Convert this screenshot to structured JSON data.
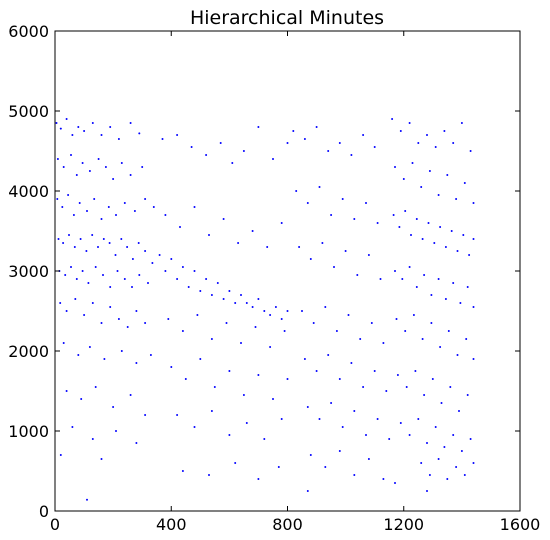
{
  "chart_data": {
    "type": "scatter",
    "title": "Hierarchical Minutes",
    "xlabel": "",
    "ylabel": "",
    "xlim": [
      0,
      1600
    ],
    "ylim": [
      0,
      6000
    ],
    "x_ticks": [
      "0",
      "400",
      "800",
      "1200",
      "1600"
    ],
    "y_ticks": [
      "0",
      "1000",
      "2000",
      "3000",
      "4000",
      "5000",
      "6000"
    ],
    "grid": false,
    "legend": "none",
    "marker_color": "#0000ff",
    "estimated_points": 3000,
    "x_extent": [
      0,
      1440
    ],
    "y_extent": [
      130,
      5000
    ],
    "clusters": [
      {
        "x_range": [
          0,
          350
        ],
        "y_center": 3300,
        "note": "dense band 2200-4900"
      },
      {
        "x_range": [
          350,
          800
        ],
        "y_center": 2900,
        "note": "descending band to ~2300"
      },
      {
        "x_range": [
          800,
          1150
        ],
        "y_center": 1700,
        "note": "lower band 700-2500"
      },
      {
        "x_range": [
          1150,
          1440
        ],
        "y_center": 3200,
        "note": "dense band 500-4900"
      }
    ],
    "series": [
      {
        "points": [
          [
            5,
            4850
          ],
          [
            20,
            4780
          ],
          [
            40,
            4900
          ],
          [
            60,
            4700
          ],
          [
            80,
            4800
          ],
          [
            100,
            4750
          ],
          [
            130,
            4850
          ],
          [
            160,
            4700
          ],
          [
            190,
            4800
          ],
          [
            220,
            4650
          ],
          [
            260,
            4850
          ],
          [
            290,
            4720
          ],
          [
            10,
            4400
          ],
          [
            30,
            4300
          ],
          [
            55,
            4450
          ],
          [
            75,
            4200
          ],
          [
            95,
            4350
          ],
          [
            120,
            4250
          ],
          [
            150,
            4400
          ],
          [
            175,
            4300
          ],
          [
            200,
            4150
          ],
          [
            230,
            4350
          ],
          [
            260,
            4200
          ],
          [
            300,
            4300
          ],
          [
            8,
            3900
          ],
          [
            25,
            3800
          ],
          [
            45,
            3950
          ],
          [
            65,
            3700
          ],
          [
            85,
            3850
          ],
          [
            110,
            3750
          ],
          [
            135,
            3900
          ],
          [
            160,
            3650
          ],
          [
            185,
            3800
          ],
          [
            210,
            3700
          ],
          [
            240,
            3850
          ],
          [
            275,
            3750
          ],
          [
            310,
            3900
          ],
          [
            340,
            3800
          ],
          [
            12,
            3400
          ],
          [
            28,
            3350
          ],
          [
            48,
            3450
          ],
          [
            68,
            3300
          ],
          [
            88,
            3400
          ],
          [
            108,
            3250
          ],
          [
            128,
            3450
          ],
          [
            148,
            3300
          ],
          [
            168,
            3400
          ],
          [
            188,
            3350
          ],
          [
            208,
            3200
          ],
          [
            228,
            3400
          ],
          [
            248,
            3300
          ],
          [
            268,
            3150
          ],
          [
            288,
            3350
          ],
          [
            310,
            3250
          ],
          [
            335,
            3100
          ],
          [
            15,
            3000
          ],
          [
            35,
            2950
          ],
          [
            55,
            3050
          ],
          [
            75,
            2900
          ],
          [
            95,
            3000
          ],
          [
            115,
            2850
          ],
          [
            140,
            3050
          ],
          [
            165,
            2950
          ],
          [
            190,
            2800
          ],
          [
            215,
            3000
          ],
          [
            240,
            2900
          ],
          [
            265,
            2800
          ],
          [
            290,
            2950
          ],
          [
            320,
            2850
          ],
          [
            18,
            2600
          ],
          [
            40,
            2500
          ],
          [
            70,
            2650
          ],
          [
            100,
            2450
          ],
          [
            130,
            2600
          ],
          [
            160,
            2350
          ],
          [
            190,
            2550
          ],
          [
            220,
            2400
          ],
          [
            250,
            2300
          ],
          [
            280,
            2500
          ],
          [
            310,
            2350
          ],
          [
            30,
            2100
          ],
          [
            80,
            1950
          ],
          [
            120,
            2050
          ],
          [
            170,
            1900
          ],
          [
            230,
            2000
          ],
          [
            280,
            1850
          ],
          [
            330,
            1950
          ],
          [
            40,
            1500
          ],
          [
            90,
            1400
          ],
          [
            140,
            1550
          ],
          [
            200,
            1300
          ],
          [
            260,
            1450
          ],
          [
            310,
            1200
          ],
          [
            60,
            1050
          ],
          [
            130,
            900
          ],
          [
            210,
            1000
          ],
          [
            280,
            850
          ],
          [
            110,
            140
          ],
          [
            20,
            700
          ],
          [
            160,
            650
          ],
          [
            360,
            3200
          ],
          [
            380,
            3000
          ],
          [
            400,
            3150
          ],
          [
            420,
            2900
          ],
          [
            440,
            3050
          ],
          [
            460,
            2800
          ],
          [
            480,
            3000
          ],
          [
            500,
            2750
          ],
          [
            520,
            2900
          ],
          [
            540,
            2700
          ],
          [
            560,
            2850
          ],
          [
            580,
            2650
          ],
          [
            600,
            2750
          ],
          [
            620,
            2600
          ],
          [
            370,
            4650
          ],
          [
            420,
            4700
          ],
          [
            470,
            4550
          ],
          [
            520,
            4450
          ],
          [
            570,
            4600
          ],
          [
            610,
            4350
          ],
          [
            650,
            4500
          ],
          [
            700,
            4800
          ],
          [
            750,
            4400
          ],
          [
            800,
            4600
          ],
          [
            380,
            3700
          ],
          [
            430,
            3550
          ],
          [
            480,
            3800
          ],
          [
            530,
            3450
          ],
          [
            580,
            3650
          ],
          [
            630,
            3350
          ],
          [
            680,
            3500
          ],
          [
            730,
            3300
          ],
          [
            780,
            3600
          ],
          [
            390,
            2400
          ],
          [
            440,
            2250
          ],
          [
            490,
            2450
          ],
          [
            540,
            2150
          ],
          [
            590,
            2350
          ],
          [
            640,
            2100
          ],
          [
            690,
            2300
          ],
          [
            740,
            2050
          ],
          [
            790,
            2250
          ],
          [
            400,
            1800
          ],
          [
            450,
            1650
          ],
          [
            500,
            1900
          ],
          [
            550,
            1550
          ],
          [
            600,
            1750
          ],
          [
            650,
            1450
          ],
          [
            700,
            1700
          ],
          [
            750,
            1400
          ],
          [
            800,
            1650
          ],
          [
            420,
            1200
          ],
          [
            480,
            1050
          ],
          [
            540,
            1250
          ],
          [
            600,
            950
          ],
          [
            660,
            1100
          ],
          [
            720,
            900
          ],
          [
            780,
            1150
          ],
          [
            440,
            500
          ],
          [
            530,
            450
          ],
          [
            620,
            600
          ],
          [
            700,
            400
          ],
          [
            770,
            550
          ],
          [
            640,
            2700
          ],
          [
            660,
            2600
          ],
          [
            680,
            2550
          ],
          [
            700,
            2650
          ],
          [
            720,
            2500
          ],
          [
            740,
            2450
          ],
          [
            760,
            2550
          ],
          [
            780,
            2400
          ],
          [
            800,
            2500
          ],
          [
            820,
            4750
          ],
          [
            860,
            4650
          ],
          [
            900,
            4800
          ],
          [
            940,
            4500
          ],
          [
            980,
            4600
          ],
          [
            1020,
            4450
          ],
          [
            1060,
            4700
          ],
          [
            1100,
            4550
          ],
          [
            830,
            4000
          ],
          [
            870,
            3850
          ],
          [
            910,
            4050
          ],
          [
            950,
            3700
          ],
          [
            990,
            3900
          ],
          [
            1030,
            3650
          ],
          [
            1070,
            3850
          ],
          [
            1110,
            3600
          ],
          [
            840,
            3300
          ],
          [
            880,
            3150
          ],
          [
            920,
            3350
          ],
          [
            960,
            3050
          ],
          [
            1000,
            3250
          ],
          [
            1040,
            2950
          ],
          [
            1080,
            3200
          ],
          [
            1120,
            2900
          ],
          [
            850,
            2500
          ],
          [
            890,
            2350
          ],
          [
            930,
            2550
          ],
          [
            970,
            2250
          ],
          [
            1010,
            2450
          ],
          [
            1050,
            2150
          ],
          [
            1090,
            2350
          ],
          [
            1130,
            2100
          ],
          [
            860,
            1900
          ],
          [
            900,
            1750
          ],
          [
            940,
            1950
          ],
          [
            980,
            1650
          ],
          [
            1020,
            1850
          ],
          [
            1060,
            1550
          ],
          [
            1100,
            1750
          ],
          [
            1140,
            1500
          ],
          [
            870,
            1300
          ],
          [
            910,
            1150
          ],
          [
            950,
            1350
          ],
          [
            990,
            1050
          ],
          [
            1030,
            1250
          ],
          [
            1070,
            950
          ],
          [
            1110,
            1150
          ],
          [
            1150,
            900
          ],
          [
            880,
            700
          ],
          [
            930,
            550
          ],
          [
            980,
            750
          ],
          [
            1030,
            450
          ],
          [
            1080,
            650
          ],
          [
            1130,
            400
          ],
          [
            870,
            250
          ],
          [
            1160,
            4900
          ],
          [
            1190,
            4750
          ],
          [
            1220,
            4850
          ],
          [
            1250,
            4600
          ],
          [
            1280,
            4700
          ],
          [
            1310,
            4550
          ],
          [
            1340,
            4750
          ],
          [
            1370,
            4600
          ],
          [
            1400,
            4850
          ],
          [
            1430,
            4500
          ],
          [
            1170,
            4300
          ],
          [
            1200,
            4150
          ],
          [
            1230,
            4350
          ],
          [
            1260,
            4050
          ],
          [
            1290,
            4250
          ],
          [
            1320,
            3950
          ],
          [
            1350,
            4200
          ],
          [
            1380,
            3900
          ],
          [
            1410,
            4100
          ],
          [
            1440,
            3850
          ],
          [
            1165,
            3700
          ],
          [
            1185,
            3550
          ],
          [
            1205,
            3750
          ],
          [
            1225,
            3450
          ],
          [
            1245,
            3650
          ],
          [
            1265,
            3400
          ],
          [
            1285,
            3600
          ],
          [
            1305,
            3350
          ],
          [
            1325,
            3550
          ],
          [
            1345,
            3300
          ],
          [
            1365,
            3500
          ],
          [
            1385,
            3250
          ],
          [
            1405,
            3450
          ],
          [
            1425,
            3200
          ],
          [
            1440,
            3400
          ],
          [
            1170,
            3000
          ],
          [
            1195,
            2900
          ],
          [
            1220,
            3050
          ],
          [
            1245,
            2800
          ],
          [
            1270,
            2950
          ],
          [
            1295,
            2700
          ],
          [
            1320,
            2900
          ],
          [
            1345,
            2650
          ],
          [
            1370,
            2850
          ],
          [
            1395,
            2600
          ],
          [
            1420,
            2800
          ],
          [
            1440,
            2550
          ],
          [
            1175,
            2400
          ],
          [
            1205,
            2250
          ],
          [
            1235,
            2450
          ],
          [
            1265,
            2150
          ],
          [
            1295,
            2350
          ],
          [
            1325,
            2050
          ],
          [
            1355,
            2250
          ],
          [
            1385,
            1950
          ],
          [
            1415,
            2150
          ],
          [
            1440,
            1900
          ],
          [
            1180,
            1700
          ],
          [
            1210,
            1550
          ],
          [
            1240,
            1750
          ],
          [
            1270,
            1450
          ],
          [
            1300,
            1650
          ],
          [
            1330,
            1350
          ],
          [
            1360,
            1550
          ],
          [
            1390,
            1250
          ],
          [
            1420,
            1450
          ],
          [
            1190,
            1100
          ],
          [
            1220,
            950
          ],
          [
            1250,
            1150
          ],
          [
            1280,
            850
          ],
          [
            1310,
            1050
          ],
          [
            1340,
            800
          ],
          [
            1370,
            950
          ],
          [
            1400,
            750
          ],
          [
            1430,
            900
          ],
          [
            1260,
            600
          ],
          [
            1290,
            450
          ],
          [
            1320,
            650
          ],
          [
            1350,
            400
          ],
          [
            1380,
            550
          ],
          [
            1410,
            450
          ],
          [
            1440,
            600
          ],
          [
            1280,
            250
          ],
          [
            1170,
            350
          ]
        ]
      }
    ]
  }
}
